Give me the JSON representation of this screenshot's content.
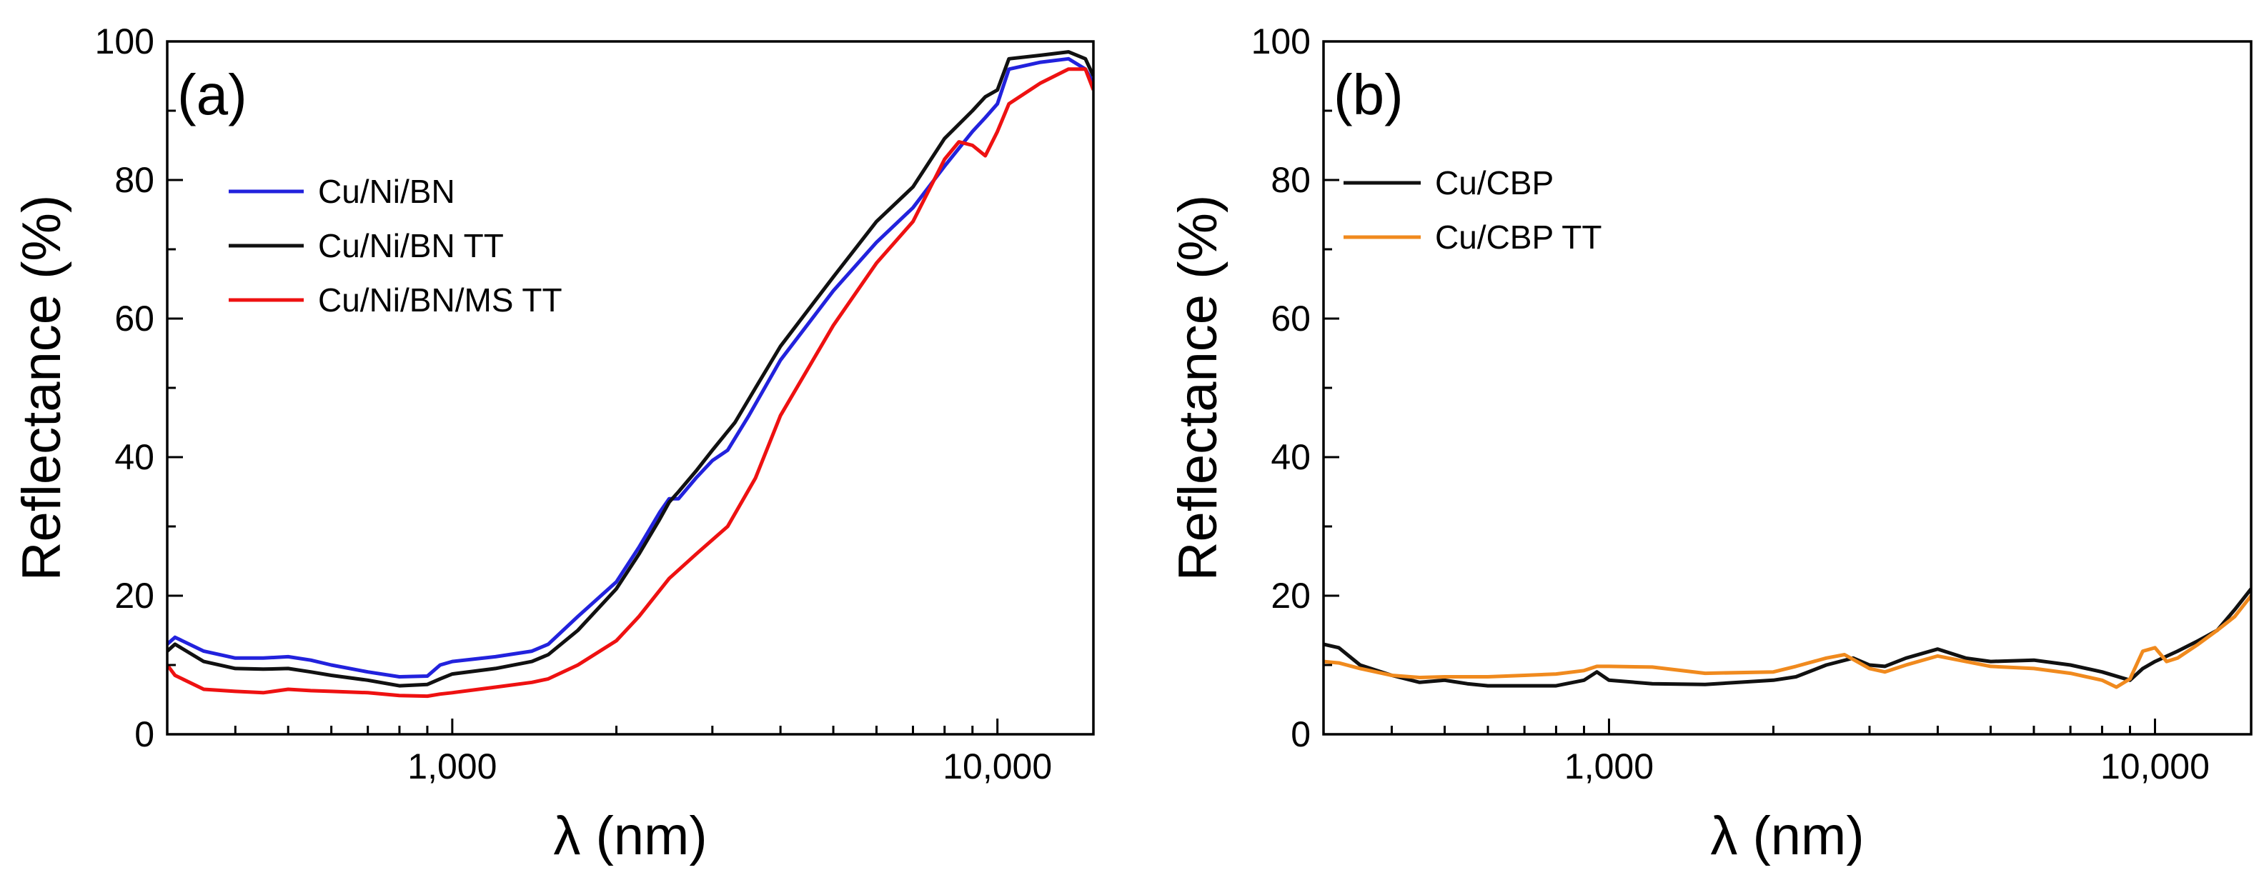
{
  "chart_data": [
    {
      "panel": "(a)",
      "type": "line",
      "xscale": "log",
      "xlim": [
        300,
        15000
      ],
      "ylim": [
        0,
        100
      ],
      "xlabel": "λ (nm)",
      "ylabel": "Reflectance (%)",
      "xticks": [
        1000,
        10000
      ],
      "xtick_labels": [
        "1,000",
        "10,000"
      ],
      "yticks": [
        0,
        20,
        40,
        60,
        80,
        100
      ],
      "ytick_labels": [
        "0",
        "20",
        "40",
        "60",
        "80",
        "100"
      ],
      "legend_position": "upper-left",
      "series": [
        {
          "name": "Cu/Ni/BN",
          "color": "#2222dd",
          "points": [
            [
              300,
              13
            ],
            [
              310,
              14
            ],
            [
              350,
              12
            ],
            [
              400,
              11
            ],
            [
              450,
              11
            ],
            [
              500,
              11.2
            ],
            [
              550,
              10.7
            ],
            [
              600,
              10
            ],
            [
              700,
              9
            ],
            [
              800,
              8.3
            ],
            [
              900,
              8.4
            ],
            [
              950,
              10
            ],
            [
              1000,
              10.5
            ],
            [
              1200,
              11.2
            ],
            [
              1400,
              12
            ],
            [
              1500,
              13
            ],
            [
              1700,
              17
            ],
            [
              2000,
              22
            ],
            [
              2200,
              27
            ],
            [
              2400,
              32
            ],
            [
              2500,
              34
            ],
            [
              2600,
              34
            ],
            [
              2800,
              37
            ],
            [
              3000,
              39.5
            ],
            [
              3200,
              41
            ],
            [
              3500,
              46
            ],
            [
              4000,
              54
            ],
            [
              5000,
              64
            ],
            [
              6000,
              71
            ],
            [
              7000,
              76
            ],
            [
              8000,
              82
            ],
            [
              9000,
              87
            ],
            [
              9500,
              89
            ],
            [
              10000,
              91
            ],
            [
              10500,
              96
            ],
            [
              12000,
              97
            ],
            [
              13500,
              97.5
            ],
            [
              14500,
              96
            ],
            [
              15000,
              94
            ]
          ]
        },
        {
          "name": "Cu/Ni/BN TT",
          "color": "#111111",
          "points": [
            [
              300,
              12
            ],
            [
              310,
              13
            ],
            [
              350,
              10.5
            ],
            [
              400,
              9.5
            ],
            [
              450,
              9.4
            ],
            [
              500,
              9.5
            ],
            [
              550,
              9
            ],
            [
              600,
              8.5
            ],
            [
              700,
              7.8
            ],
            [
              800,
              7
            ],
            [
              900,
              7.2
            ],
            [
              950,
              8
            ],
            [
              1000,
              8.7
            ],
            [
              1200,
              9.5
            ],
            [
              1400,
              10.5
            ],
            [
              1500,
              11.5
            ],
            [
              1700,
              15
            ],
            [
              2000,
              21
            ],
            [
              2200,
              26
            ],
            [
              2400,
              31
            ],
            [
              2500,
              33.5
            ],
            [
              2600,
              35
            ],
            [
              2800,
              38
            ],
            [
              3000,
              41
            ],
            [
              3300,
              45
            ],
            [
              3600,
              50
            ],
            [
              4000,
              56
            ],
            [
              5000,
              66
            ],
            [
              6000,
              74
            ],
            [
              7000,
              79
            ],
            [
              8000,
              86
            ],
            [
              9000,
              90
            ],
            [
              9500,
              92
            ],
            [
              10000,
              93
            ],
            [
              10500,
              97.5
            ],
            [
              12000,
              98
            ],
            [
              13500,
              98.5
            ],
            [
              14500,
              97.5
            ],
            [
              15000,
              95
            ]
          ]
        },
        {
          "name": "Cu/Ni/BN/MS TT",
          "color": "#ee1111",
          "points": [
            [
              300,
              10
            ],
            [
              310,
              8.5
            ],
            [
              350,
              6.5
            ],
            [
              400,
              6.2
            ],
            [
              450,
              6
            ],
            [
              500,
              6.5
            ],
            [
              550,
              6.3
            ],
            [
              600,
              6.2
            ],
            [
              700,
              6
            ],
            [
              800,
              5.6
            ],
            [
              900,
              5.5
            ],
            [
              950,
              5.8
            ],
            [
              1000,
              6
            ],
            [
              1200,
              6.8
            ],
            [
              1400,
              7.5
            ],
            [
              1500,
              8
            ],
            [
              1700,
              10
            ],
            [
              2000,
              13.5
            ],
            [
              2200,
              17
            ],
            [
              2500,
              22.5
            ],
            [
              2800,
              26
            ],
            [
              3200,
              30
            ],
            [
              3600,
              37
            ],
            [
              4000,
              46
            ],
            [
              5000,
              59
            ],
            [
              6000,
              68
            ],
            [
              7000,
              74
            ],
            [
              8000,
              83
            ],
            [
              8500,
              85.5
            ],
            [
              9000,
              85
            ],
            [
              9500,
              83.5
            ],
            [
              10000,
              87
            ],
            [
              10500,
              91
            ],
            [
              12000,
              94
            ],
            [
              13500,
              96
            ],
            [
              14500,
              96
            ],
            [
              15000,
              93
            ]
          ]
        }
      ]
    },
    {
      "panel": "(b)",
      "type": "line",
      "xscale": "log",
      "xlim": [
        300,
        15000
      ],
      "ylim": [
        0,
        100
      ],
      "xlabel": "λ (nm)",
      "ylabel": "Reflectance (%)",
      "xticks": [
        1000,
        10000
      ],
      "xtick_labels": [
        "1,000",
        "10,000"
      ],
      "yticks": [
        0,
        20,
        40,
        60,
        80,
        100
      ],
      "ytick_labels": [
        "0",
        "20",
        "40",
        "60",
        "80",
        "100"
      ],
      "legend_position": "upper-left",
      "series": [
        {
          "name": "Cu/CBP",
          "color": "#111111",
          "points": [
            [
              300,
              13
            ],
            [
              320,
              12.5
            ],
            [
              350,
              10
            ],
            [
              400,
              8.5
            ],
            [
              450,
              7.5
            ],
            [
              500,
              7.8
            ],
            [
              550,
              7.3
            ],
            [
              600,
              7
            ],
            [
              700,
              7
            ],
            [
              800,
              7
            ],
            [
              900,
              7.8
            ],
            [
              950,
              9
            ],
            [
              1000,
              7.8
            ],
            [
              1200,
              7.3
            ],
            [
              1500,
              7.2
            ],
            [
              2000,
              7.8
            ],
            [
              2200,
              8.3
            ],
            [
              2500,
              10
            ],
            [
              2800,
              11
            ],
            [
              3000,
              10
            ],
            [
              3200,
              9.8
            ],
            [
              3500,
              11
            ],
            [
              4000,
              12.3
            ],
            [
              4500,
              11
            ],
            [
              5000,
              10.5
            ],
            [
              6000,
              10.7
            ],
            [
              7000,
              10
            ],
            [
              8000,
              9
            ],
            [
              9000,
              7.8
            ],
            [
              9500,
              9.5
            ],
            [
              10000,
              10.5
            ],
            [
              11000,
              12
            ],
            [
              12000,
              13.5
            ],
            [
              13000,
              15
            ],
            [
              14000,
              18
            ],
            [
              15000,
              21
            ]
          ]
        },
        {
          "name": "Cu/CBP TT",
          "color": "#f08a1e",
          "points": [
            [
              300,
              10.5
            ],
            [
              320,
              10.3
            ],
            [
              350,
              9.5
            ],
            [
              400,
              8.5
            ],
            [
              450,
              8.2
            ],
            [
              500,
              8.3
            ],
            [
              600,
              8.3
            ],
            [
              700,
              8.5
            ],
            [
              800,
              8.7
            ],
            [
              900,
              9.2
            ],
            [
              950,
              9.8
            ],
            [
              1000,
              9.8
            ],
            [
              1200,
              9.7
            ],
            [
              1500,
              8.8
            ],
            [
              2000,
              9
            ],
            [
              2200,
              9.8
            ],
            [
              2500,
              11
            ],
            [
              2700,
              11.5
            ],
            [
              3000,
              9.5
            ],
            [
              3200,
              9
            ],
            [
              3500,
              10
            ],
            [
              4000,
              11.3
            ],
            [
              4500,
              10.5
            ],
            [
              5000,
              9.8
            ],
            [
              6000,
              9.5
            ],
            [
              7000,
              8.8
            ],
            [
              8000,
              7.8
            ],
            [
              8500,
              6.8
            ],
            [
              9000,
              8
            ],
            [
              9500,
              12
            ],
            [
              10000,
              12.5
            ],
            [
              10500,
              10.5
            ],
            [
              11000,
              11
            ],
            [
              12000,
              13
            ],
            [
              13000,
              15
            ],
            [
              14000,
              17
            ],
            [
              15000,
              20
            ]
          ]
        }
      ]
    }
  ]
}
